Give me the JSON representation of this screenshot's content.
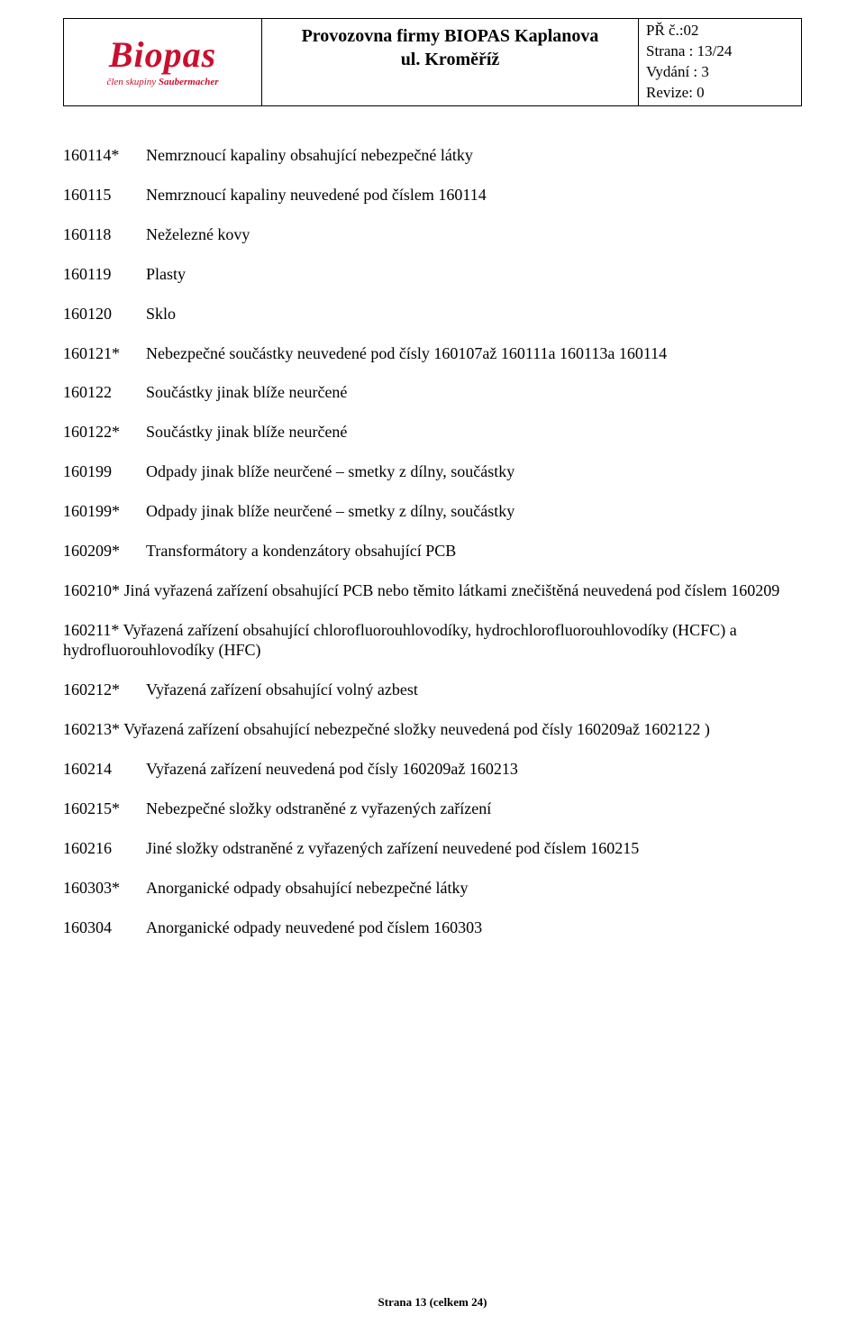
{
  "header": {
    "logo_main": "Biopas",
    "logo_sub_prefix": "člen skupiny ",
    "logo_sub_brand": "Saubermacher",
    "title_line1": "Provozovna firmy BIOPAS Kaplanova",
    "title_line2": "ul. Kroměříž",
    "meta_line1": "PŘ č.:02",
    "meta_line2": "Strana : 13/24",
    "meta_line3": "Vydání : 3",
    "meta_line4": "Revize: 0"
  },
  "items": [
    {
      "code": "160114*",
      "desc": "Nemrznoucí kapaliny obsahující nebezpečné látky"
    },
    {
      "code": "160115",
      "desc": "Nemrznoucí kapaliny neuvedené pod číslem 160114"
    },
    {
      "code": "160118",
      "desc": "Neželezné kovy"
    },
    {
      "code": "160119",
      "desc": "Plasty"
    },
    {
      "code": "160120",
      "desc": "Sklo"
    },
    {
      "code": "160121*",
      "desc": "Nebezpečné součástky neuvedené pod čísly 160107až 160111a 160113a 160114"
    },
    {
      "code": "160122",
      "desc": "Součástky jinak blíže neurčené"
    },
    {
      "code": "160122*",
      "desc": " Součástky jinak blíže neurčené"
    },
    {
      "code": "160199",
      "desc": "Odpady jinak blíže neurčené – smetky z dílny, součástky"
    },
    {
      "code": "160199*",
      "desc": "Odpady jinak blíže neurčené – smetky z dílny, součástky"
    },
    {
      "code": "160209*",
      "desc": "Transformátory a kondenzátory obsahující PCB"
    }
  ],
  "para1_code": "160210*",
  "para1_rest": " Jiná vyřazená zařízení obsahující PCB nebo těmito látkami znečištěná neuvedená pod číslem 160209",
  "para2_code": "160211*",
  "para2_rest": " Vyřazená zařízení obsahující chlorofluorouhlovodíky, hydrochlorofluorouhlovodíky (HCFC) a hydrofluorouhlovodíky (HFC)",
  "items2": [
    {
      "code": "160212*",
      "desc": "Vyřazená zařízení obsahující volný azbest"
    }
  ],
  "para3_code": "160213*",
  "para3_rest": " Vyřazená zařízení obsahující nebezpečné složky neuvedená pod čísly 160209až 1602122 )",
  "items3": [
    {
      "code": "160214",
      "desc": "Vyřazená zařízení neuvedená pod čísly 160209až 160213"
    },
    {
      "code": "160215*",
      "desc": "Nebezpečné složky odstraněné z vyřazených zařízení"
    },
    {
      "code": "160216",
      "desc": "Jiné složky odstraněné z vyřazených zařízení neuvedené pod číslem 160215"
    },
    {
      "code": "160303*",
      "desc": "Anorganické odpady obsahující nebezpečné látky"
    },
    {
      "code": "160304",
      "desc": "Anorganické odpady neuvedené pod číslem 160303"
    }
  ],
  "footer": "Strana 13 (celkem 24)"
}
